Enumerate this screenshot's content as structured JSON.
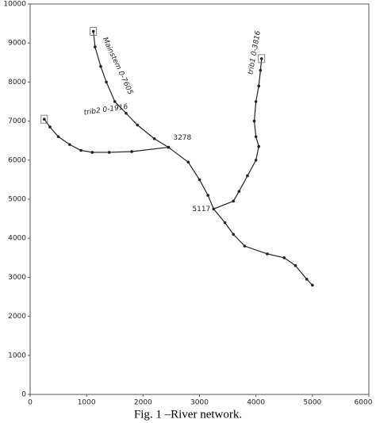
{
  "chart_data": {
    "type": "line",
    "caption": "Fig. 1 –River network.",
    "xlim": [
      0,
      6000
    ],
    "xticks": [
      0,
      1000,
      2000,
      3000,
      4000,
      5000,
      6000
    ],
    "ylim": [
      0,
      10000
    ],
    "yticks": [
      0,
      1000,
      2000,
      3000,
      4000,
      5000,
      6000,
      7000,
      8000,
      9000,
      10000
    ],
    "grid": false,
    "series": [
      {
        "name": "Mainstem 0-7605",
        "color": "#222222",
        "x": [
          1120,
          1150,
          1250,
          1350,
          1500,
          1700,
          1900,
          2200,
          2450,
          2800,
          3000,
          3150,
          3250,
          3450,
          3600,
          3800,
          4200,
          4500,
          4700,
          4900,
          5000
        ],
        "values": [
          9300,
          8900,
          8400,
          8000,
          7500,
          7200,
          6900,
          6550,
          6330,
          5950,
          5500,
          5100,
          4750,
          4400,
          4100,
          3800,
          3600,
          3500,
          3300,
          2950,
          2800
        ]
      },
      {
        "name": "trib2 0-1916",
        "color": "#222222",
        "end_label": "3278",
        "x": [
          250,
          350,
          500,
          700,
          900,
          1100,
          1400,
          1800,
          2450
        ],
        "values": [
          7050,
          6850,
          6600,
          6400,
          6250,
          6200,
          6200,
          6220,
          6330
        ]
      },
      {
        "name": "trib1 0-3816",
        "color": "#222222",
        "end_label": "5117",
        "x": [
          4100,
          4080,
          4050,
          4000,
          3970,
          4000,
          4050,
          4000,
          3850,
          3700,
          3600,
          3250
        ],
        "values": [
          8600,
          8300,
          7900,
          7500,
          7000,
          6600,
          6350,
          6000,
          5600,
          5200,
          4950,
          4750
        ]
      }
    ]
  }
}
